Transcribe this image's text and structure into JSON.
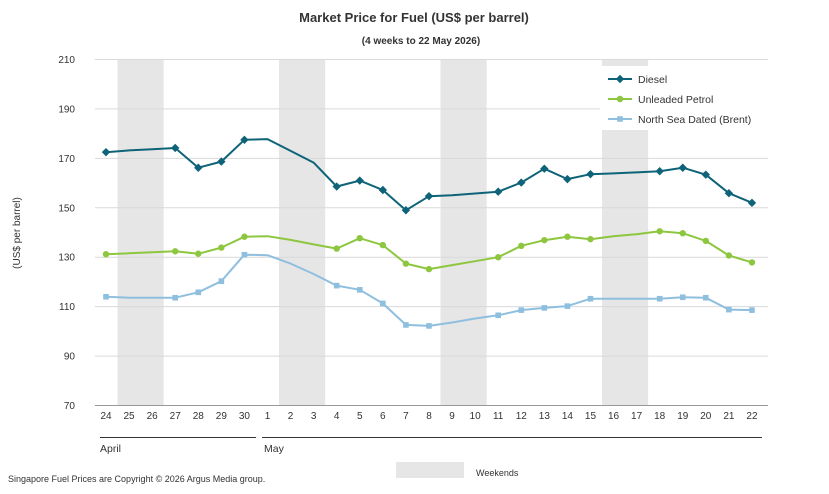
{
  "chart_data": {
    "type": "line",
    "title": "Market Price for Fuel (US$ per barrel)",
    "subtitle": "(4 weeks to 22 May 2026)",
    "ylabel": "(US$ per barrel)",
    "ylim": [
      70,
      210
    ],
    "yticks": [
      70,
      90,
      110,
      130,
      150,
      170,
      190,
      210
    ],
    "grid": true,
    "legend_position": "top-right",
    "x": [
      "24",
      "25",
      "26",
      "27",
      "28",
      "29",
      "30",
      "1",
      "2",
      "3",
      "4",
      "5",
      "6",
      "7",
      "8",
      "9",
      "10",
      "11",
      "12",
      "13",
      "14",
      "15",
      "16",
      "17",
      "18",
      "19",
      "20",
      "21",
      "22"
    ],
    "months": [
      {
        "name": "April",
        "start": "24"
      },
      {
        "name": "May",
        "start": "1"
      }
    ],
    "weekend_pairs": [
      [
        "25",
        "26"
      ],
      [
        "2",
        "3"
      ],
      [
        "9",
        "10"
      ],
      [
        "16",
        "17"
      ]
    ],
    "weekend_label": "Weekends",
    "series": [
      {
        "name": "Diesel",
        "color": "#0e6378",
        "marker": "diamond",
        "values": [
          172.5,
          173.2,
          173.7,
          174.2,
          166.2,
          168.7,
          177.5,
          177.8,
          173.0,
          168.3,
          158.6,
          161.0,
          157.2,
          149.0,
          154.7,
          155.1,
          155.8,
          156.5,
          160.2,
          165.8,
          161.6,
          163.6,
          163.9,
          164.3,
          164.8,
          166.2,
          163.4,
          155.9,
          152.0
        ]
      },
      {
        "name": "Unleaded Petrol",
        "color": "#8dc63f",
        "marker": "circle",
        "values": [
          131.2,
          131.6,
          132.0,
          132.4,
          131.4,
          133.9,
          138.3,
          138.5,
          137.0,
          135.2,
          133.5,
          137.7,
          134.9,
          127.4,
          125.2,
          126.8,
          128.4,
          130.0,
          134.6,
          136.9,
          138.3,
          137.3,
          138.5,
          139.3,
          140.5,
          139.7,
          136.6,
          130.7,
          127.9
        ]
      },
      {
        "name": "North Sea Dated (Brent)",
        "color": "#8fbfdf",
        "marker": "square",
        "values": [
          114.0,
          113.6,
          113.6,
          113.6,
          115.8,
          120.3,
          131.0,
          130.8,
          127.4,
          123.2,
          118.5,
          116.8,
          111.3,
          102.6,
          102.2,
          103.6,
          105.2,
          106.5,
          108.6,
          109.5,
          110.2,
          113.2,
          113.2,
          113.2,
          113.2,
          113.8,
          113.6,
          108.8,
          108.6
        ]
      }
    ],
    "markers_at": [
      "24",
      "27",
      "28",
      "29",
      "30",
      "4",
      "5",
      "6",
      "7",
      "8",
      "11",
      "12",
      "13",
      "14",
      "15",
      "18",
      "19",
      "20",
      "21",
      "22"
    ]
  },
  "footer": {
    "copyright": "Singapore Fuel Prices are Copyright © 2026 Argus Media group."
  }
}
